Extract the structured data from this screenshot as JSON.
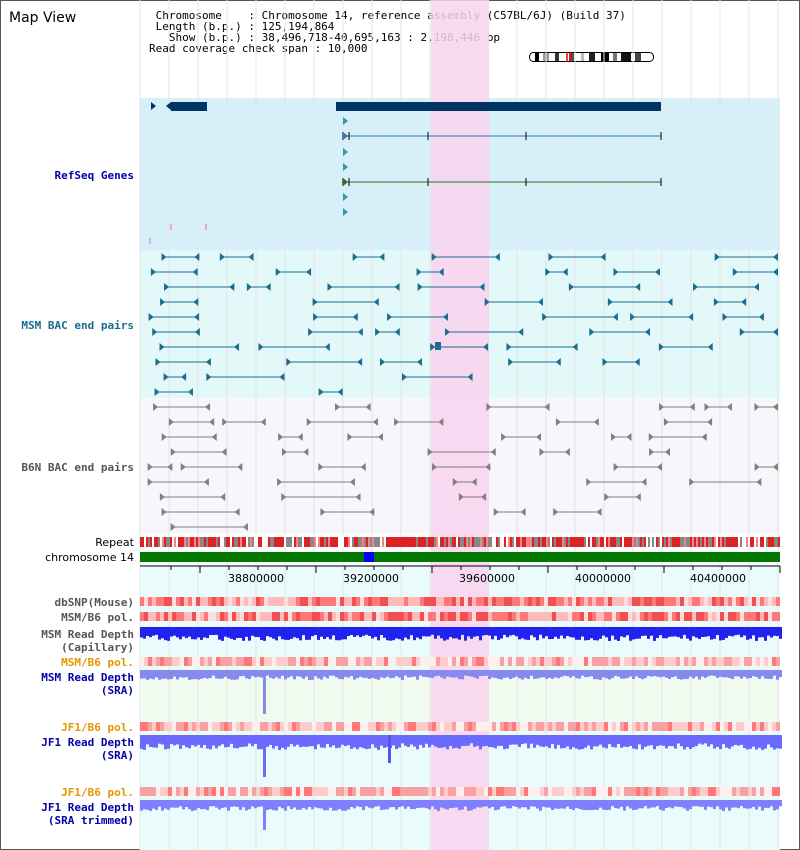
{
  "header": {
    "title": "Map View",
    "info_lines": [
      " Chromosome    : Chromosome 14, reference assembly (C57BL/6J) (Build 37)",
      " Length (b.p.) : 125,194,864",
      "   Show (b.p.) : 38,496,718-40,695,163 : 2,198,446 bp",
      "Read coverage check span : 10,000"
    ]
  },
  "tracks": {
    "refseq": "RefSeq Genes",
    "msm_bac": "MSM BAC end pairs",
    "b6n_bac": "B6N BAC end pairs",
    "repeat": "Repeat",
    "chromosome": "chromosome 14",
    "dbsnp": "dbSNP(Mouse)",
    "msm_pol_1": "MSM/B6 pol.",
    "msm_depth_cap_1": "MSM Read Depth",
    "msm_depth_cap_2": "(Capillary)",
    "msm_pol_2": "MSM/B6 pol.",
    "msm_depth_sra_1": "MSM Read Depth",
    "msm_depth_sra_2": "(SRA)",
    "jf1_pol_1": "JF1/B6 pol.",
    "jf1_depth_1": "JF1 Read Depth",
    "jf1_depth_2": "(SRA)",
    "jf1_pol_2": "JF1/B6 pol.",
    "jf1_trim_1": "JF1 Read Depth",
    "jf1_trim_2": "(SRA trimmed)"
  },
  "axis": {
    "ticks": [
      "38800000",
      "39200000",
      "39600000",
      "40000000",
      "40400000"
    ]
  },
  "colors": {
    "refseq_bg": "#d7eff9",
    "msm_bg": "#e3f8f9",
    "b6n_bg": "#f6f6fb",
    "highlight": "#f9d3ef",
    "gene": "#003366",
    "msm_bac": "#1a6d8f",
    "b6n_bac": "#808080",
    "chromosome": "#007700",
    "chrom_mark": "#0000ff",
    "depth": "#3333ee",
    "depth_light": "#7777ff"
  }
}
